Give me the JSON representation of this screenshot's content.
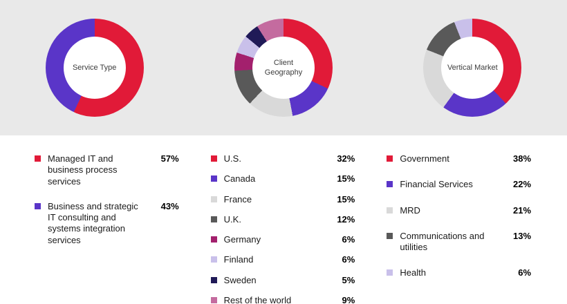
{
  "colors": {
    "band_background": "#e9e9e9",
    "red": "#e11a38",
    "purple": "#5a35c8",
    "light_gray": "#d9d9d9",
    "dark_gray": "#595959",
    "magenta": "#a3206d",
    "lavender": "#c9c0ea",
    "navy": "#201a57",
    "pink": "#c46b9f"
  },
  "chart_data": [
    {
      "type": "pie",
      "title": "Service Type",
      "legend_position": "below",
      "segments": [
        {
          "label": "Managed IT and business process services",
          "value": 57,
          "color": "#e11a38"
        },
        {
          "label": "Business and strategic IT consulting and systems integration services",
          "value": 43,
          "color": "#5a35c8"
        }
      ]
    },
    {
      "type": "pie",
      "title": "Client Geography",
      "legend_position": "below",
      "segments": [
        {
          "label": "U.S.",
          "value": 32,
          "color": "#e11a38"
        },
        {
          "label": "Canada",
          "value": 15,
          "color": "#5a35c8"
        },
        {
          "label": "France",
          "value": 15,
          "color": "#d9d9d9"
        },
        {
          "label": "U.K.",
          "value": 12,
          "color": "#595959"
        },
        {
          "label": "Germany",
          "value": 6,
          "color": "#a3206d"
        },
        {
          "label": "Finland",
          "value": 6,
          "color": "#c9c0ea"
        },
        {
          "label": "Sweden",
          "value": 5,
          "color": "#201a57"
        },
        {
          "label": "Rest of the world",
          "value": 9,
          "color": "#c46b9f"
        }
      ]
    },
    {
      "type": "pie",
      "title": "Vertical Market",
      "legend_position": "below",
      "segments": [
        {
          "label": "Government",
          "value": 38,
          "color": "#e11a38"
        },
        {
          "label": "Financial Services",
          "value": 22,
          "color": "#5a35c8"
        },
        {
          "label": "MRD",
          "value": 21,
          "color": "#d9d9d9"
        },
        {
          "label": "Communications and utilities",
          "value": 13,
          "color": "#595959"
        },
        {
          "label": "Health",
          "value": 6,
          "color": "#c9c0ea"
        }
      ]
    }
  ]
}
